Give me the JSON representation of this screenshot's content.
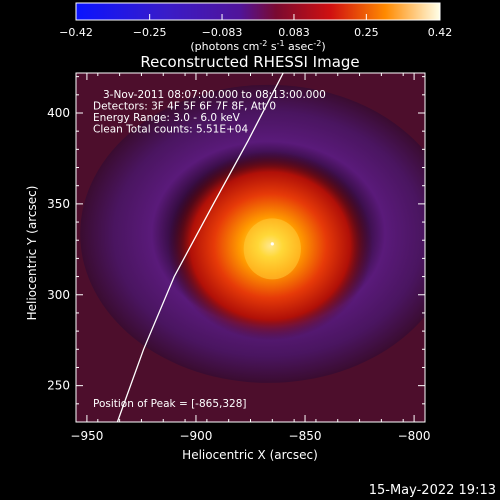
{
  "chart_data": {
    "type": "heatmap",
    "title": "Reconstructed RHESSI Image",
    "colorbar": {
      "ticks": [
        "-0.42",
        "-0.25",
        "-0.083",
        "0.083",
        "0.25",
        "0.42"
      ],
      "unit_prefix": "(photons cm",
      "unit_exp1": "-2",
      "unit_mid": " s",
      "unit_exp2": "-1",
      "unit_mid2": " asec",
      "unit_exp3": "-2",
      "unit_suffix": ")",
      "range": [
        -0.42,
        0.42
      ],
      "colormap": "blue-purple-red-yellow-white"
    },
    "xlabel": "Heliocentric X (arcsec)",
    "ylabel": "Heliocentric Y (arcsec)",
    "xlim": [
      -955,
      -795
    ],
    "ylim": [
      230,
      422
    ],
    "xticks": [
      -950,
      -900,
      -850,
      -800
    ],
    "yticks": [
      250,
      300,
      350,
      400
    ],
    "annotations": [
      "3-Nov-2011 08:07:00.000 to 08:13:00.000",
      "Detectors: 3F 4F 5F 6F 7F 8F, Att 0",
      "Energy Range: 3.0 - 6.0 keV",
      "Clean    Total counts: 5.51E+04"
    ],
    "peak_label": "Position of Peak = [-865,328]",
    "peak": {
      "x": -865,
      "y": 328,
      "value": 0.42
    },
    "source_extent_arcsec": {
      "x": [
        -905,
        -830
      ],
      "y": [
        290,
        370
      ]
    },
    "limb": [
      [
        -936,
        230
      ],
      [
        -924,
        270
      ],
      [
        -910,
        310
      ],
      [
        -892,
        350
      ],
      [
        -876,
        385
      ],
      [
        -860,
        422
      ]
    ],
    "footer_date": "15-May-2022 19:13"
  }
}
